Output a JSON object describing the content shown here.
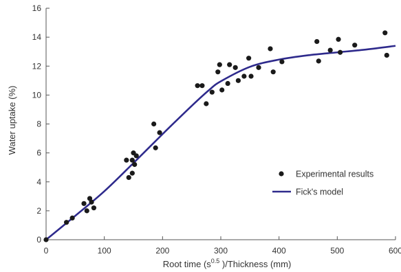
{
  "chart_data": {
    "type": "scatter",
    "title": "",
    "xlabel": {
      "prefix": "Root time (s",
      "superscript": "0.5",
      "suffix": " )/Thickness (mm)"
    },
    "ylabel": "Water uptake (%)",
    "xlim": [
      0,
      600
    ],
    "ylim": [
      0,
      16
    ],
    "xticks": [
      0,
      100,
      200,
      300,
      400,
      500,
      600
    ],
    "yticks": [
      0,
      2,
      4,
      6,
      8,
      10,
      12,
      14,
      16
    ],
    "grid": false,
    "legend_position": "bottom-right",
    "colors": {
      "scatter": "#1a1a1a",
      "model": "#2e2a8c",
      "axis": "#555555"
    },
    "series": [
      {
        "name": "Experimental results",
        "kind": "scatter",
        "points": [
          [
            0,
            0
          ],
          [
            35,
            1.2
          ],
          [
            45,
            1.5
          ],
          [
            65,
            2.5
          ],
          [
            70,
            2.0
          ],
          [
            75,
            2.85
          ],
          [
            78,
            2.6
          ],
          [
            82,
            2.2
          ],
          [
            138,
            5.5
          ],
          [
            142,
            4.3
          ],
          [
            148,
            4.6
          ],
          [
            148,
            5.5
          ],
          [
            150,
            6.0
          ],
          [
            152,
            5.2
          ],
          [
            155,
            5.8
          ],
          [
            185,
            8.0
          ],
          [
            188,
            6.35
          ],
          [
            195,
            7.4
          ],
          [
            260,
            10.65
          ],
          [
            268,
            10.65
          ],
          [
            275,
            9.4
          ],
          [
            285,
            10.2
          ],
          [
            295,
            11.6
          ],
          [
            298,
            12.1
          ],
          [
            302,
            10.35
          ],
          [
            312,
            10.8
          ],
          [
            315,
            12.1
          ],
          [
            325,
            11.9
          ],
          [
            330,
            11.0
          ],
          [
            340,
            11.3
          ],
          [
            348,
            12.55
          ],
          [
            352,
            11.3
          ],
          [
            365,
            11.9
          ],
          [
            385,
            13.2
          ],
          [
            390,
            11.6
          ],
          [
            405,
            12.3
          ],
          [
            465,
            13.7
          ],
          [
            468,
            12.35
          ],
          [
            488,
            13.1
          ],
          [
            502,
            13.85
          ],
          [
            505,
            12.95
          ],
          [
            530,
            13.45
          ],
          [
            582,
            14.3
          ],
          [
            585,
            12.75
          ]
        ]
      },
      {
        "name": "Fick's model",
        "kind": "line",
        "points": [
          [
            0,
            0
          ],
          [
            50,
            1.65
          ],
          [
            100,
            3.35
          ],
          [
            150,
            5.3
          ],
          [
            200,
            7.3
          ],
          [
            250,
            9.25
          ],
          [
            280,
            10.35
          ],
          [
            300,
            10.95
          ],
          [
            350,
            11.95
          ],
          [
            400,
            12.45
          ],
          [
            450,
            12.75
          ],
          [
            500,
            12.95
          ],
          [
            550,
            13.15
          ],
          [
            600,
            13.4
          ]
        ]
      }
    ]
  }
}
